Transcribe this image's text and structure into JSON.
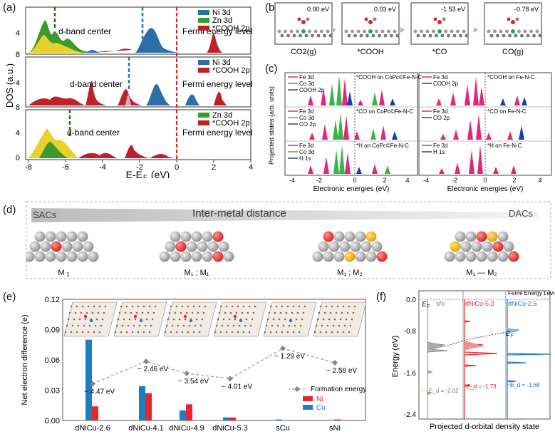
{
  "labels": {
    "a": "(a)",
    "b": "(b)",
    "c": "(c)",
    "d": "(d)",
    "e": "(e)",
    "f": "(f)"
  },
  "panel_a": {
    "ylabel": "DOS (a.u.)",
    "xlabel": "E-E",
    "xlabel_sub": "F",
    "xlabel_unit": " (eV)",
    "xticks": [
      "-8",
      "-6",
      "-4",
      "-2",
      "0",
      "2",
      "4"
    ],
    "yticks_top": [
      "4",
      "8"
    ],
    "yticks_mid": [
      "4",
      "8"
    ],
    "yticks_bot": [
      "0",
      "4",
      "8"
    ],
    "dband": "d-band center",
    "fermi": "Fermi energy level",
    "legend1": [
      "Ni 3d",
      "Zn 3d",
      "*COOH 2p"
    ],
    "legend2": [
      "Ni 3d",
      "*COOH 2p"
    ],
    "legend3": [
      "Zn 3d",
      "*COOH 2p"
    ],
    "colors": {
      "ni": "#2e6ea8",
      "zn": "#3a9a2a",
      "cooh": "#c0202a",
      "fermi": "#d02020"
    }
  },
  "panel_b": {
    "energies": [
      "0.00 eV",
      "0.03 eV",
      "-1.53 eV",
      "-0.78 eV"
    ],
    "captions": [
      "CO2(g)",
      "*COOH",
      "*CO",
      "CO(g)"
    ]
  },
  "panel_c": {
    "ylabel": "Projected states (arb. units)",
    "xlabel": "Electronic energies (eV)",
    "xticks": [
      "-4",
      "-2",
      "0",
      "2",
      "4"
    ],
    "left_rows": [
      {
        "legend": [
          "Fe 3d",
          "Co 3d",
          "COOH 2p"
        ],
        "title": "*COOH on CoPc©Fe-N-C"
      },
      {
        "legend": [
          "Fe 3d",
          "Co 3d",
          "CO 2p"
        ],
        "title": "*CO on CoPc©Fe-N-C"
      },
      {
        "legend": [
          "Fe 3d",
          "Co 3d",
          "H 1s"
        ],
        "title": "*H on CoPc©Fe-N-C"
      }
    ],
    "right_rows": [
      {
        "legend": [
          "Fe 3d",
          "COOH 2p"
        ],
        "title": "*COOH on Fe-N-C"
      },
      {
        "legend": [
          "Fe 3d",
          "CO 2p"
        ],
        "title": "*CO on Fe-N-C"
      },
      {
        "legend": [
          "Fe 3d",
          "H 1s"
        ],
        "title": "*H on Fe-N-C"
      }
    ]
  },
  "panel_d": {
    "left": "SACs",
    "center": "Inter-metal distance",
    "right": "DACs",
    "configs": [
      "M",
      "M₁ ; M₁",
      "M₁ ; M₂",
      "M₁ — M₂"
    ],
    "config_subs": [
      "1",
      "",
      "",
      ""
    ]
  },
  "panel_e": {
    "ylabel": "Net electron difference  (e)",
    "legend": {
      "formation": "Formation energy",
      "ni": "Ni",
      "cu": "Cu"
    },
    "colors": {
      "ni": "#e8262e",
      "cu": "#1b7fc4",
      "formation": "#888888"
    }
  },
  "panel_f": {
    "ylabel": "Energy (eV)",
    "xlabel": "Projected d-orbital density state",
    "yticks": [
      "0.0",
      "-0.8",
      "-1.6",
      "-2.4"
    ],
    "ef_label": "E",
    "ef_sub": "F",
    "fermi_legend": "Fermi Energy Level",
    "columns": [
      "sNi",
      "dNiCu-5.3",
      "dNiCu-2.6"
    ],
    "ed_values": [
      "E_d = -2.02",
      "E_d = -1.73",
      "E_d = -1.68"
    ],
    "colors": [
      "#888888",
      "#e8262e",
      "#1b7fc4"
    ]
  },
  "chart_data": [
    {
      "type": "bar",
      "title": "",
      "xlabel": "",
      "ylabel": "Net electron difference (e)",
      "categories": [
        "dNiCu-2.6",
        "dNiCu-4.1",
        "dNiCu-4.9",
        "dNiCu-5.3",
        "sCu",
        "sNi"
      ],
      "series": [
        {
          "name": "Cu",
          "values": [
            0.08,
            0.034,
            0.01,
            0.003,
            0.001,
            0.0
          ]
        },
        {
          "name": "Ni",
          "values": [
            0.014,
            0.027,
            0.016,
            0.003,
            0.0,
            0.001
          ]
        }
      ],
      "formation_energy": {
        "name": "Formation energy",
        "values": [
          -4.47,
          -2.46,
          -3.54,
          -4.01,
          -1.29,
          -2.58
        ],
        "labels": [
          "− 4.47 eV",
          "− 2.46 eV",
          "− 3.54 eV",
          "− 4.01 eV",
          "− 1.29 eV",
          "− 2.58 eV"
        ],
        "range": [
          -5.2,
          -0.6
        ]
      },
      "ylim": [
        0,
        0.12
      ],
      "yticks": [
        "0.00",
        "0.03",
        "0.06",
        "0.09",
        "0.12"
      ],
      "ytick_values": [
        0,
        0.03,
        0.06,
        0.09,
        0.12
      ],
      "legend": "bottom-right"
    }
  ]
}
